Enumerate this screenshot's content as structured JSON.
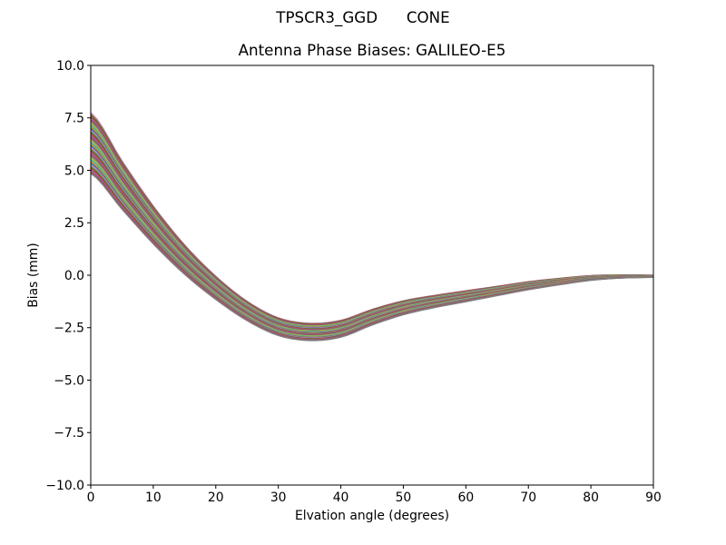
{
  "figure": {
    "suptitle": "TPSCR3_GGD      CONE",
    "background": "#ffffff"
  },
  "chart_data": {
    "type": "line",
    "title": "Antenna Phase Biases: GALILEO-E5",
    "xlabel": "Elvation angle (degrees)",
    "ylabel": "Bias (mm)",
    "xlim": [
      0,
      90
    ],
    "ylim": [
      -10,
      10
    ],
    "grid": false,
    "legend": null,
    "axes_color": "#000000",
    "text_color": "#000000",
    "xticks": [
      0,
      10,
      20,
      30,
      40,
      50,
      60,
      70,
      80,
      90
    ],
    "xtick_labels": [
      "0",
      "10",
      "20",
      "30",
      "40",
      "50",
      "60",
      "70",
      "80",
      "90"
    ],
    "yticks": [
      10.0,
      7.5,
      5.0,
      2.5,
      0.0,
      -2.5,
      -5.0,
      -7.5,
      -10.0
    ],
    "ytick_labels": [
      "10.0",
      "7.5",
      "5.0",
      "2.5",
      "0.0",
      "−2.5",
      "−5.0",
      "−7.5",
      "−10.0"
    ],
    "x": [
      0,
      5,
      10,
      15,
      20,
      25,
      30,
      35,
      40,
      45,
      50,
      55,
      60,
      65,
      70,
      75,
      80,
      85,
      90
    ],
    "series_family": {
      "description": "Bundle of many overlapping phase-bias curves (one per antenna/azimuth), spanning a band: values at 0 deg range 4.85 to 7.75 mm, crossing zero near 17-18 deg, minimum band -2.3 to -3.1 mm near 33-37 deg, converging smoothly to 0 mm at 90 deg.",
      "count": 36,
      "center_bias_mm": [
        6.3,
        4.3,
        2.4,
        0.75,
        -0.6,
        -1.7,
        -2.45,
        -2.7,
        -2.55,
        -2.0,
        -1.55,
        -1.25,
        -1.0,
        -0.75,
        -0.5,
        -0.3,
        -0.13,
        -0.06,
        -0.05
      ],
      "half_spread_mm": [
        1.45,
        1.15,
        0.9,
        0.7,
        0.55,
        0.46,
        0.42,
        0.41,
        0.4,
        0.37,
        0.33,
        0.29,
        0.26,
        0.22,
        0.19,
        0.15,
        0.11,
        0.07,
        0.05
      ],
      "colors": [
        "#e377c2",
        "#2ca02c",
        "#d62728",
        "#9467bd",
        "#8c564b",
        "#7f7f7f",
        "#bcbd22",
        "#17becf",
        "#ff7f0e",
        "#1f77b4"
      ],
      "line_width": 1.5
    }
  }
}
